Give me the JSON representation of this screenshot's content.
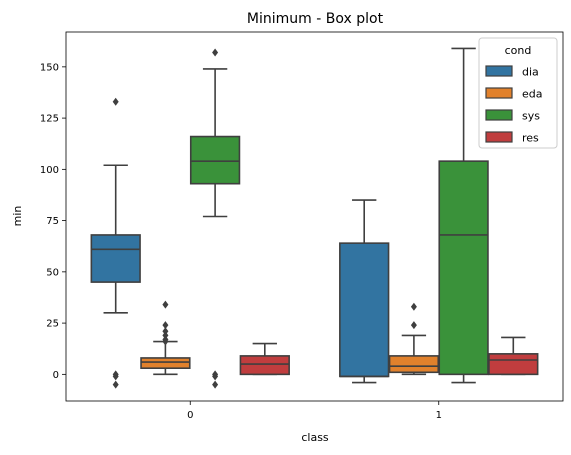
{
  "chart_data": {
    "type": "box",
    "title": "Minimum - Box plot",
    "xlabel": "class",
    "ylabel": "min",
    "ylim": [
      -13,
      167
    ],
    "yticks": [
      0,
      25,
      50,
      75,
      100,
      125,
      150
    ],
    "categories": [
      "0",
      "1"
    ],
    "legend": {
      "title": "cond",
      "placement": "top-right"
    },
    "series": [
      {
        "name": "dia",
        "color": "#3274a1",
        "boxes": [
          {
            "category": "0",
            "whisker_low": 30,
            "q1": 45,
            "median": 61,
            "q3": 68,
            "whisker_high": 102,
            "outliers": [
              133,
              0,
              -1,
              -5
            ]
          },
          {
            "category": "1",
            "whisker_low": -4,
            "q1": -1,
            "median": -1,
            "q3": 64,
            "whisker_high": 85,
            "outliers": []
          }
        ]
      },
      {
        "name": "eda",
        "color": "#e1812c",
        "boxes": [
          {
            "category": "0",
            "whisker_low": 0,
            "q1": 3,
            "median": 6,
            "q3": 8,
            "whisker_high": 16,
            "outliers": [
              34,
              24,
              21,
              19,
              17,
              16
            ]
          },
          {
            "category": "1",
            "whisker_low": 0,
            "q1": 1,
            "median": 4,
            "q3": 9,
            "whisker_high": 19,
            "outliers": [
              33,
              24
            ]
          }
        ]
      },
      {
        "name": "sys",
        "color": "#3a923a",
        "boxes": [
          {
            "category": "0",
            "whisker_low": 77,
            "q1": 93,
            "median": 104,
            "q3": 116,
            "whisker_high": 149,
            "outliers": [
              157,
              0,
              -1,
              -5
            ]
          },
          {
            "category": "1",
            "whisker_low": -4,
            "q1": 0,
            "median": 68,
            "q3": 104,
            "whisker_high": 159,
            "outliers": []
          }
        ]
      },
      {
        "name": "res",
        "color": "#c03d3e",
        "boxes": [
          {
            "category": "0",
            "whisker_low": 0,
            "q1": 0,
            "median": 5,
            "q3": 9,
            "whisker_high": 15,
            "outliers": []
          },
          {
            "category": "1",
            "whisker_low": 0,
            "q1": 0,
            "median": 7,
            "q3": 10,
            "whisker_high": 18,
            "outliers": []
          }
        ]
      }
    ]
  }
}
